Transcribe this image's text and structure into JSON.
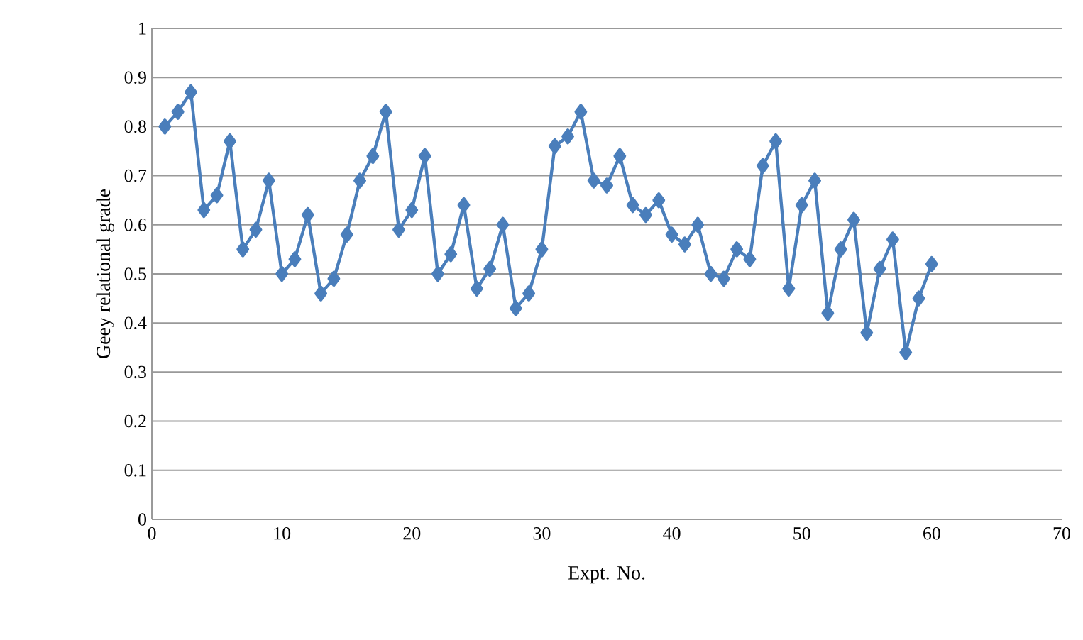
{
  "chart_data": {
    "type": "line",
    "xlabel": "Expt. No.",
    "ylabel": "Geey relational grade",
    "x": [
      1,
      2,
      3,
      4,
      5,
      6,
      7,
      8,
      9,
      10,
      11,
      12,
      13,
      14,
      15,
      16,
      17,
      18,
      19,
      20,
      21,
      22,
      23,
      24,
      25,
      26,
      27,
      28,
      29,
      30,
      31,
      32,
      33,
      34,
      35,
      36,
      37,
      38,
      39,
      40,
      41,
      42,
      43,
      44,
      45,
      46,
      47,
      48,
      49,
      50,
      51,
      52,
      53,
      54,
      55,
      56,
      57,
      58,
      59,
      60
    ],
    "series": [
      {
        "color": "#4a7ebb",
        "values": [
          0.8,
          0.83,
          0.87,
          0.63,
          0.66,
          0.77,
          0.55,
          0.59,
          0.69,
          0.5,
          0.53,
          0.62,
          0.46,
          0.49,
          0.58,
          0.69,
          0.74,
          0.83,
          0.59,
          0.63,
          0.74,
          0.5,
          0.54,
          0.64,
          0.47,
          0.51,
          0.6,
          0.43,
          0.46,
          0.55,
          0.76,
          0.78,
          0.83,
          0.69,
          0.68,
          0.74,
          0.64,
          0.62,
          0.65,
          0.58,
          0.56,
          0.6,
          0.5,
          0.49,
          0.55,
          0.53,
          0.72,
          0.77,
          0.47,
          0.64,
          0.69,
          0.42,
          0.55,
          0.61,
          0.38,
          0.51,
          0.57,
          0.34,
          0.45,
          0.52
        ]
      }
    ],
    "xlim": [
      0,
      70
    ],
    "xticks": [
      0,
      10,
      20,
      30,
      40,
      50,
      60,
      70
    ],
    "ylim": [
      0,
      1
    ],
    "yticks": [
      0,
      0.1,
      0.2,
      0.3,
      0.4,
      0.5,
      0.6,
      0.7,
      0.8,
      0.9,
      1
    ],
    "grid": "y",
    "marker": "diamond",
    "line_style": "solid"
  }
}
